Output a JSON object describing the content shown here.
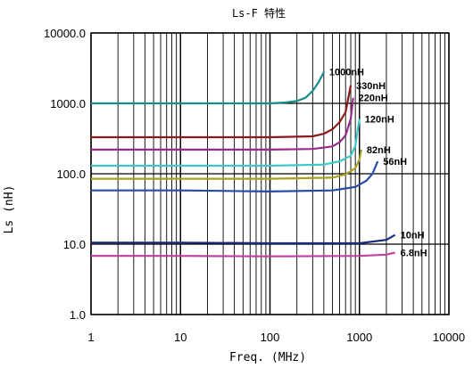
{
  "chart_data": {
    "type": "line",
    "title": "Ls-F 特性",
    "xlabel": "Freq. (MHz)",
    "ylabel": "Ls (nH)",
    "xscale": "log",
    "yscale": "log",
    "xlim": [
      1,
      10000
    ],
    "ylim": [
      1,
      10000
    ],
    "grid": true,
    "x_ticks": [
      "1",
      "10",
      "100",
      "1000",
      "10000"
    ],
    "y_ticks": [
      "1.0",
      "10.0",
      "100.0",
      "1000.0",
      "10000.0"
    ],
    "series": [
      {
        "name": "1000nH",
        "color": "#1a8c8c",
        "x": [
          1,
          10,
          100,
          150,
          200,
          250,
          300,
          350,
          400
        ],
        "y": [
          1000,
          1000,
          1000,
          1030,
          1080,
          1200,
          1500,
          2000,
          2800
        ]
      },
      {
        "name": "330nH",
        "color": "#8b1a1a",
        "x": [
          1,
          10,
          100,
          300,
          400,
          500,
          600,
          700,
          800
        ],
        "y": [
          330,
          330,
          330,
          340,
          370,
          430,
          540,
          750,
          1800
        ]
      },
      {
        "name": "220nH",
        "color": "#9a2a8a",
        "x": [
          1,
          10,
          100,
          300,
          500,
          600,
          700,
          800,
          850
        ],
        "y": [
          220,
          220,
          220,
          225,
          245,
          280,
          350,
          600,
          1200
        ]
      },
      {
        "name": "120nH",
        "color": "#3cc8c8",
        "x": [
          1,
          10,
          100,
          400,
          600,
          800,
          900,
          950,
          1000
        ],
        "y": [
          130,
          130,
          130,
          135,
          150,
          180,
          250,
          400,
          600
        ]
      },
      {
        "name": "82nH",
        "color": "#a8a020",
        "x": [
          1,
          10,
          100,
          500,
          700,
          900,
          1000,
          1050
        ],
        "y": [
          85,
          85,
          85,
          88,
          98,
          120,
          160,
          220
        ]
      },
      {
        "name": "56nH",
        "color": "#2a4aa8",
        "x": [
          1,
          10,
          100,
          500,
          900,
          1200,
          1400,
          1600
        ],
        "y": [
          58,
          58,
          56,
          58,
          65,
          80,
          100,
          150
        ]
      },
      {
        "name": "10nH",
        "color": "#1a2a7a",
        "x": [
          1,
          10,
          100,
          1000,
          2000,
          2500
        ],
        "y": [
          10.5,
          10.5,
          10.3,
          10.3,
          11.5,
          13.5
        ]
      },
      {
        "name": "6.8nH",
        "color": "#c040a0",
        "x": [
          1,
          10,
          100,
          1000,
          2000,
          2500
        ],
        "y": [
          6.8,
          6.8,
          6.7,
          6.8,
          7.1,
          7.6
        ]
      }
    ]
  }
}
